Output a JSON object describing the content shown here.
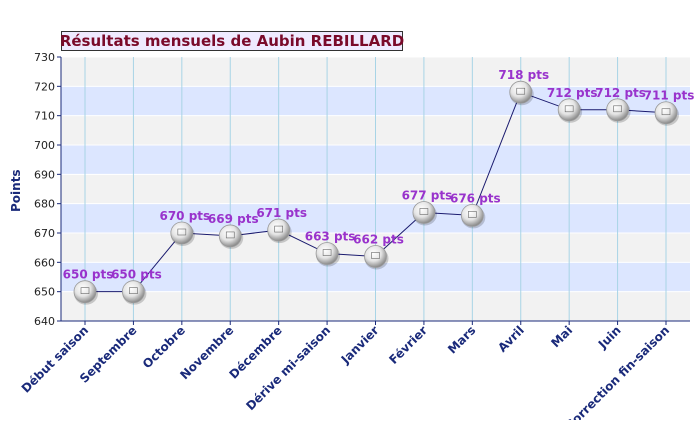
{
  "chart_data": {
    "type": "line",
    "title": "Résultats mensuels de Aubin REBILLARD",
    "ylabel": "Points",
    "xlabel": "",
    "ylim": [
      640,
      730
    ],
    "yticks": [
      640,
      650,
      660,
      670,
      680,
      690,
      700,
      710,
      720,
      730
    ],
    "categories": [
      "Début saison",
      "Septembre",
      "Octobre",
      "Novembre",
      "Décembre",
      "Dérive mi-saison",
      "Janvier",
      "Février",
      "Mars",
      "Avril",
      "Mai",
      "Juin",
      "Correction fin-saison"
    ],
    "series": [
      {
        "values": [
          650,
          650,
          670,
          669,
          671,
          663,
          662,
          677,
          676,
          718,
          712,
          712,
          711
        ],
        "labels": [
          "650 pts",
          "650 pts",
          "670 pts",
          "669 pts",
          "671 pts",
          "663 pts",
          "662 pts",
          "677 pts",
          "676 pts",
          "718 pts",
          "712 pts",
          "712 pts",
          "711 pts"
        ]
      }
    ],
    "grid": true,
    "colors": {
      "line": "#1a1a6e",
      "label": "#9933cc",
      "axis": "#1a2a7a",
      "band": "#dce6ff",
      "band_alt": "#f2f2f2",
      "title": "#7a0a2a",
      "title_bg": "#efeaff"
    }
  }
}
